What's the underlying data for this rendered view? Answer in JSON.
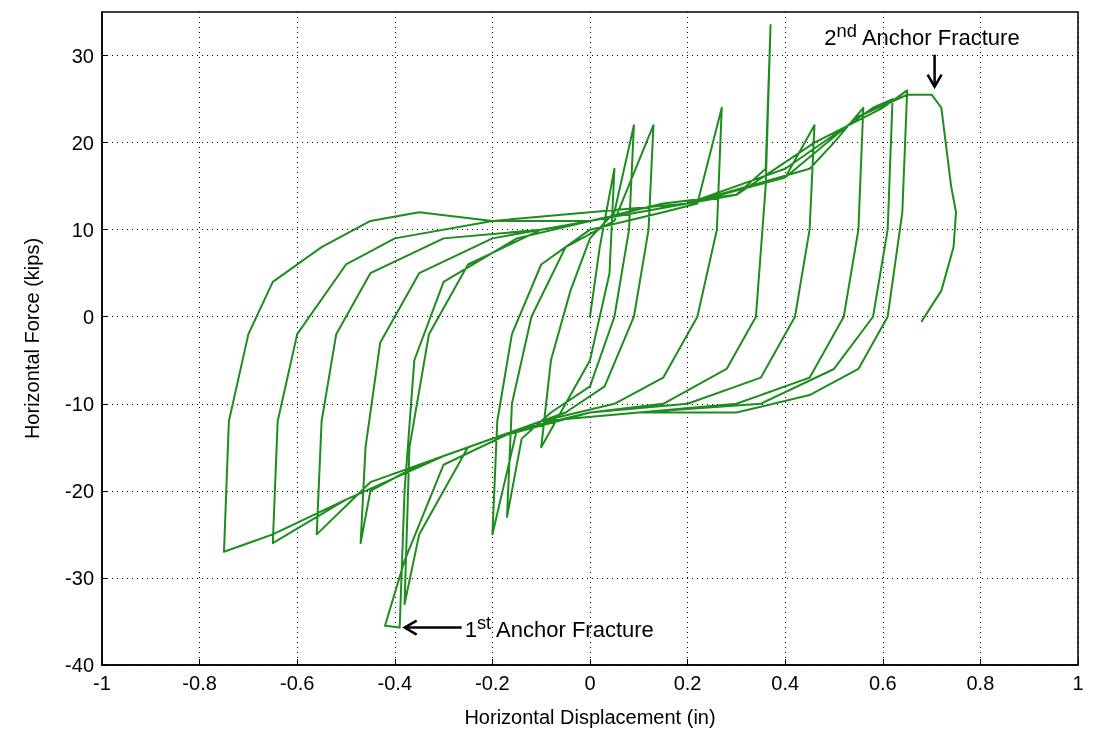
{
  "chart_data": {
    "type": "line",
    "xlabel": "Horizontal Displacement (in)",
    "ylabel": "Horizontal Force (kips)",
    "color": "#1e8c1e",
    "marker": "none",
    "line_style": "solid",
    "grid": true,
    "xlim": [
      -1,
      1
    ],
    "xticks": [
      -1,
      -0.8,
      -0.6,
      -0.4,
      -0.2,
      0,
      0.2,
      0.4,
      0.6,
      0.8,
      1
    ],
    "ylim": [
      -40,
      35
    ],
    "yticks": [
      -40,
      -30,
      -20,
      -10,
      0,
      10,
      20,
      30
    ],
    "x": [
      0,
      0.02,
      0.05,
      0.04,
      0,
      -0.05,
      -0.1,
      -0.08,
      -0.04,
      0,
      0.05,
      0.09,
      0.08,
      0.05,
      0,
      -0.08,
      -0.14,
      -0.17,
      -0.16,
      -0.12,
      -0.05,
      0.05,
      0.13,
      0.12,
      0.09,
      0.03,
      -0.05,
      -0.15,
      -0.2,
      -0.19,
      -0.16,
      -0.1,
      0,
      0.15,
      0.22,
      0.27,
      0.26,
      0.22,
      0.15,
      0.05,
      -0.1,
      -0.25,
      -0.35,
      -0.38,
      -0.37,
      -0.33,
      -0.25,
      -0.1,
      0,
      0.15,
      0.3,
      0.36,
      0.37,
      0.36,
      0.34,
      0.28,
      0.15,
      0,
      -0.15,
      -0.3,
      -0.38,
      -0.42,
      -0.39,
      -0.38,
      -0.36,
      -0.3,
      -0.15,
      0,
      0.2,
      0.4,
      0.46,
      0.45,
      0.42,
      0.35,
      0.2,
      0,
      -0.2,
      -0.35,
      -0.45,
      -0.47,
      -0.46,
      -0.43,
      -0.35,
      -0.2,
      0,
      0.2,
      0.45,
      0.5,
      0.56,
      0.55,
      0.52,
      0.45,
      0.3,
      0.1,
      -0.1,
      -0.3,
      -0.45,
      -0.56,
      -0.55,
      -0.52,
      -0.45,
      -0.3,
      -0.1,
      0.1,
      0.3,
      0.46,
      0.6,
      0.65,
      0.64,
      0.61,
      0.55,
      0.45,
      0.3,
      0.1,
      -0.1,
      -0.3,
      -0.5,
      -0.65,
      -0.64,
      -0.6,
      -0.5,
      -0.4,
      -0.2,
      0,
      0.2,
      0.4,
      0.58,
      0.62,
      0.61,
      0.58,
      0.5,
      0.35,
      0.1,
      -0.1,
      -0.3,
      -0.5,
      -0.65,
      -0.75,
      -0.74,
      -0.7,
      -0.65,
      -0.55,
      -0.45,
      -0.35,
      -0.2,
      0,
      0.2,
      0.4,
      0.55,
      0.65,
      0.7,
      0.72,
      0.74,
      0.75,
      0.745,
      0.72,
      0.68
    ],
    "values": [
      0,
      8,
      17,
      5,
      -5,
      -10,
      -15,
      -5,
      3,
      9,
      12,
      22,
      10,
      0,
      -8,
      -11,
      -14,
      -23,
      -10,
      0,
      8,
      11,
      22,
      10,
      0,
      -8,
      -11,
      -13,
      -25,
      -12,
      -2,
      6,
      10,
      12,
      13,
      24,
      10,
      0,
      -7,
      -10,
      -12,
      -15,
      -25,
      -33,
      -15,
      -2,
      6,
      10,
      11,
      13,
      14,
      17,
      33.5,
      15,
      0,
      -6,
      -10,
      -11,
      -13,
      -17,
      -28,
      -35.5,
      -35.7,
      -20,
      -5,
      4,
      9,
      11,
      13,
      16,
      22,
      10,
      0,
      -7,
      -10,
      -11,
      -14,
      -17,
      -20,
      -26,
      -15,
      -3,
      5,
      9,
      11,
      13,
      17,
      20,
      24,
      10,
      0,
      -7,
      -10,
      -11,
      -12,
      -16,
      -19,
      -25,
      -12,
      -2,
      5,
      9,
      10,
      12,
      14,
      20,
      24,
      26,
      12,
      0,
      -6,
      -9,
      -11,
      -11,
      -12,
      -16,
      -21,
      -26,
      -12,
      -2,
      6,
      9,
      11,
      12,
      13,
      17,
      24,
      25,
      10,
      0,
      -6,
      -10,
      -11,
      -12,
      -16,
      -21,
      -25,
      -27,
      -12,
      -2,
      4,
      8,
      11,
      12,
      11,
      11,
      13,
      16,
      23,
      25.5,
      25.5,
      24,
      15,
      12,
      8,
      3,
      -0.5
    ],
    "annotations": [
      {
        "text": "1$^{st}$ Anchor Fracture",
        "x": -0.39,
        "y": -35.7
      },
      {
        "text": "2$^{nd}$ Anchor Fracture",
        "x": 0.7,
        "y": 25.5
      }
    ]
  }
}
